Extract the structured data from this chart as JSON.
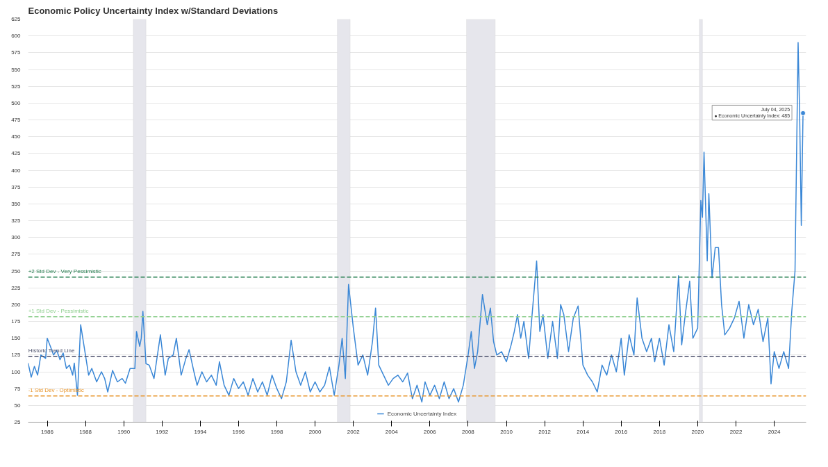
{
  "chart_data": {
    "type": "line",
    "title": "Economic Policy Uncertainty Index w/Standard Deviations",
    "xlim": [
      "1985-01",
      "2025-09"
    ],
    "ylim": [
      25,
      625
    ],
    "xticks": [
      "1986",
      "1988",
      "1990",
      "1992",
      "1994",
      "1996",
      "1998",
      "2000",
      "2002",
      "2004",
      "2006",
      "2008",
      "2010",
      "2012",
      "2014",
      "2016",
      "2018",
      "2020",
      "2022",
      "2024"
    ],
    "yticks": [
      25,
      50,
      75,
      100,
      125,
      150,
      175,
      200,
      225,
      250,
      275,
      300,
      325,
      350,
      375,
      400,
      425,
      450,
      475,
      500,
      525,
      550,
      575,
      600,
      625
    ],
    "grid": "y",
    "legend": "bottom",
    "line_style": "solid",
    "x": [
      "1985-01",
      "1985-03",
      "1985-05",
      "1985-07",
      "1985-09",
      "1985-12",
      "1986-01",
      "1986-03",
      "1986-05",
      "1986-07",
      "1986-09",
      "1986-11",
      "1987-01",
      "1987-03",
      "1987-05",
      "1987-06",
      "1987-08",
      "1987-10",
      "1987-12",
      "1988-03",
      "1988-05",
      "1988-08",
      "1988-11",
      "1989-01",
      "1989-03",
      "1989-06",
      "1989-09",
      "1989-12",
      "1990-02",
      "1990-05",
      "1990-08",
      "1990-09",
      "1990-11",
      "1990-12",
      "1991-01",
      "1991-03",
      "1991-05",
      "1991-08",
      "1991-12",
      "1992-03",
      "1992-05",
      "1992-08",
      "1992-10",
      "1993-01",
      "1993-04",
      "1993-06",
      "1993-09",
      "1993-11",
      "1994-02",
      "1994-05",
      "1994-08",
      "1994-11",
      "1995-01",
      "1995-04",
      "1995-07",
      "1995-10",
      "1996-01",
      "1996-04",
      "1996-07",
      "1996-10",
      "1997-01",
      "1997-04",
      "1997-07",
      "1997-10",
      "1998-01",
      "1998-04",
      "1998-07",
      "1998-10",
      "1999-01",
      "1999-04",
      "1999-07",
      "1999-10",
      "2000-01",
      "2000-04",
      "2000-07",
      "2000-10",
      "2001-01",
      "2001-04",
      "2001-06",
      "2001-08",
      "2001-10",
      "2002-01",
      "2002-04",
      "2002-07",
      "2002-10",
      "2003-01",
      "2003-03",
      "2003-05",
      "2003-08",
      "2003-11",
      "2004-02",
      "2004-05",
      "2004-08",
      "2004-11",
      "2005-02",
      "2005-05",
      "2005-08",
      "2005-10",
      "2006-01",
      "2006-04",
      "2006-07",
      "2006-10",
      "2007-01",
      "2007-04",
      "2007-07",
      "2007-10",
      "2008-01",
      "2008-03",
      "2008-05",
      "2008-07",
      "2008-10",
      "2009-01",
      "2009-03",
      "2009-05",
      "2009-07",
      "2009-10",
      "2010-01",
      "2010-04",
      "2010-06",
      "2010-08",
      "2010-10",
      "2010-12",
      "2011-03",
      "2011-05",
      "2011-08",
      "2011-10",
      "2011-12",
      "2012-03",
      "2012-06",
      "2012-09",
      "2012-11",
      "2013-01",
      "2013-04",
      "2013-07",
      "2013-10",
      "2014-01",
      "2014-04",
      "2014-07",
      "2014-10",
      "2015-01",
      "2015-04",
      "2015-07",
      "2015-10",
      "2016-01",
      "2016-03",
      "2016-06",
      "2016-09",
      "2016-11",
      "2017-02",
      "2017-05",
      "2017-08",
      "2017-10",
      "2018-01",
      "2018-04",
      "2018-07",
      "2018-10",
      "2019-01",
      "2019-03",
      "2019-05",
      "2019-08",
      "2019-10",
      "2020-01",
      "2020-03",
      "2020-04",
      "2020-05",
      "2020-07",
      "2020-08",
      "2020-10",
      "2020-12",
      "2021-02",
      "2021-04",
      "2021-06",
      "2021-09",
      "2021-12",
      "2022-03",
      "2022-06",
      "2022-09",
      "2022-12",
      "2023-03",
      "2023-06",
      "2023-09",
      "2023-11",
      "2024-01",
      "2024-04",
      "2024-07",
      "2024-10",
      "2024-12",
      "2025-02",
      "2025-04",
      "2025-05",
      "2025-06",
      "2025-07-04"
    ],
    "series": [
      {
        "name": "Economic Uncertainty Index",
        "color": "#3a87d6",
        "values": [
          113,
          92,
          108,
          95,
          125,
          120,
          150,
          138,
          125,
          132,
          118,
          128,
          105,
          110,
          95,
          113,
          65,
          170,
          140,
          95,
          105,
          85,
          100,
          90,
          70,
          102,
          85,
          90,
          83,
          105,
          105,
          160,
          138,
          150,
          190,
          112,
          110,
          90,
          155,
          95,
          120,
          125,
          150,
          95,
          120,
          133,
          100,
          80,
          100,
          85,
          95,
          80,
          115,
          80,
          65,
          90,
          75,
          85,
          65,
          90,
          70,
          85,
          65,
          95,
          75,
          60,
          85,
          147,
          100,
          80,
          100,
          70,
          85,
          70,
          80,
          107,
          65,
          110,
          150,
          90,
          230,
          165,
          110,
          125,
          95,
          145,
          195,
          110,
          95,
          80,
          90,
          95,
          85,
          98,
          60,
          80,
          55,
          85,
          65,
          80,
          60,
          85,
          60,
          75,
          55,
          80,
          125,
          160,
          105,
          130,
          215,
          170,
          195,
          145,
          125,
          130,
          115,
          140,
          160,
          185,
          150,
          175,
          120,
          180,
          265,
          160,
          185,
          120,
          175,
          120,
          200,
          185,
          130,
          180,
          198,
          110,
          95,
          85,
          70,
          110,
          95,
          125,
          100,
          150,
          95,
          155,
          125,
          210,
          150,
          130,
          150,
          115,
          150,
          110,
          170,
          130,
          243,
          140,
          180,
          235,
          150,
          165,
          355,
          330,
          427,
          265,
          365,
          240,
          285,
          285,
          200,
          155,
          165,
          180,
          205,
          150,
          200,
          170,
          193,
          145,
          180,
          82,
          130,
          105,
          130,
          105,
          190,
          250,
          590,
          480,
          318,
          485
        ]
      }
    ],
    "ref_lines": [
      {
        "axis": "y",
        "value": 241,
        "label": "+2 Std Dev - Very Pessimistic",
        "color": "#1e7a4a",
        "line_style": "dashed"
      },
      {
        "axis": "y",
        "value": 182,
        "label": "+1 Std Dev - Pessimistic",
        "color": "#8fcf8f",
        "line_style": "dashed"
      },
      {
        "axis": "y",
        "value": 123,
        "label": "Historic Trend Line",
        "color": "#4a4e69",
        "line_style": "dashed"
      },
      {
        "axis": "y",
        "value": 64,
        "label": "-1 Std Dev - Optimistic",
        "color": "#e8962c",
        "line_style": "dashed"
      }
    ],
    "bands": [
      {
        "axis": "x",
        "from": "1990-07",
        "to": "1991-03",
        "color": "#e6e6ec"
      },
      {
        "axis": "x",
        "from": "2001-03",
        "to": "2001-11",
        "color": "#e6e6ec"
      },
      {
        "axis": "x",
        "from": "2007-12",
        "to": "2009-06",
        "color": "#e6e6ec"
      },
      {
        "axis": "x",
        "from": "2020-02",
        "to": "2020-04",
        "color": "#e6e6ec"
      }
    ],
    "annotations": [
      {
        "text": "July 04, 2025\n● Economic Uncertainty Index: 485",
        "x": "2025-07-04",
        "y": 485
      }
    ]
  }
}
